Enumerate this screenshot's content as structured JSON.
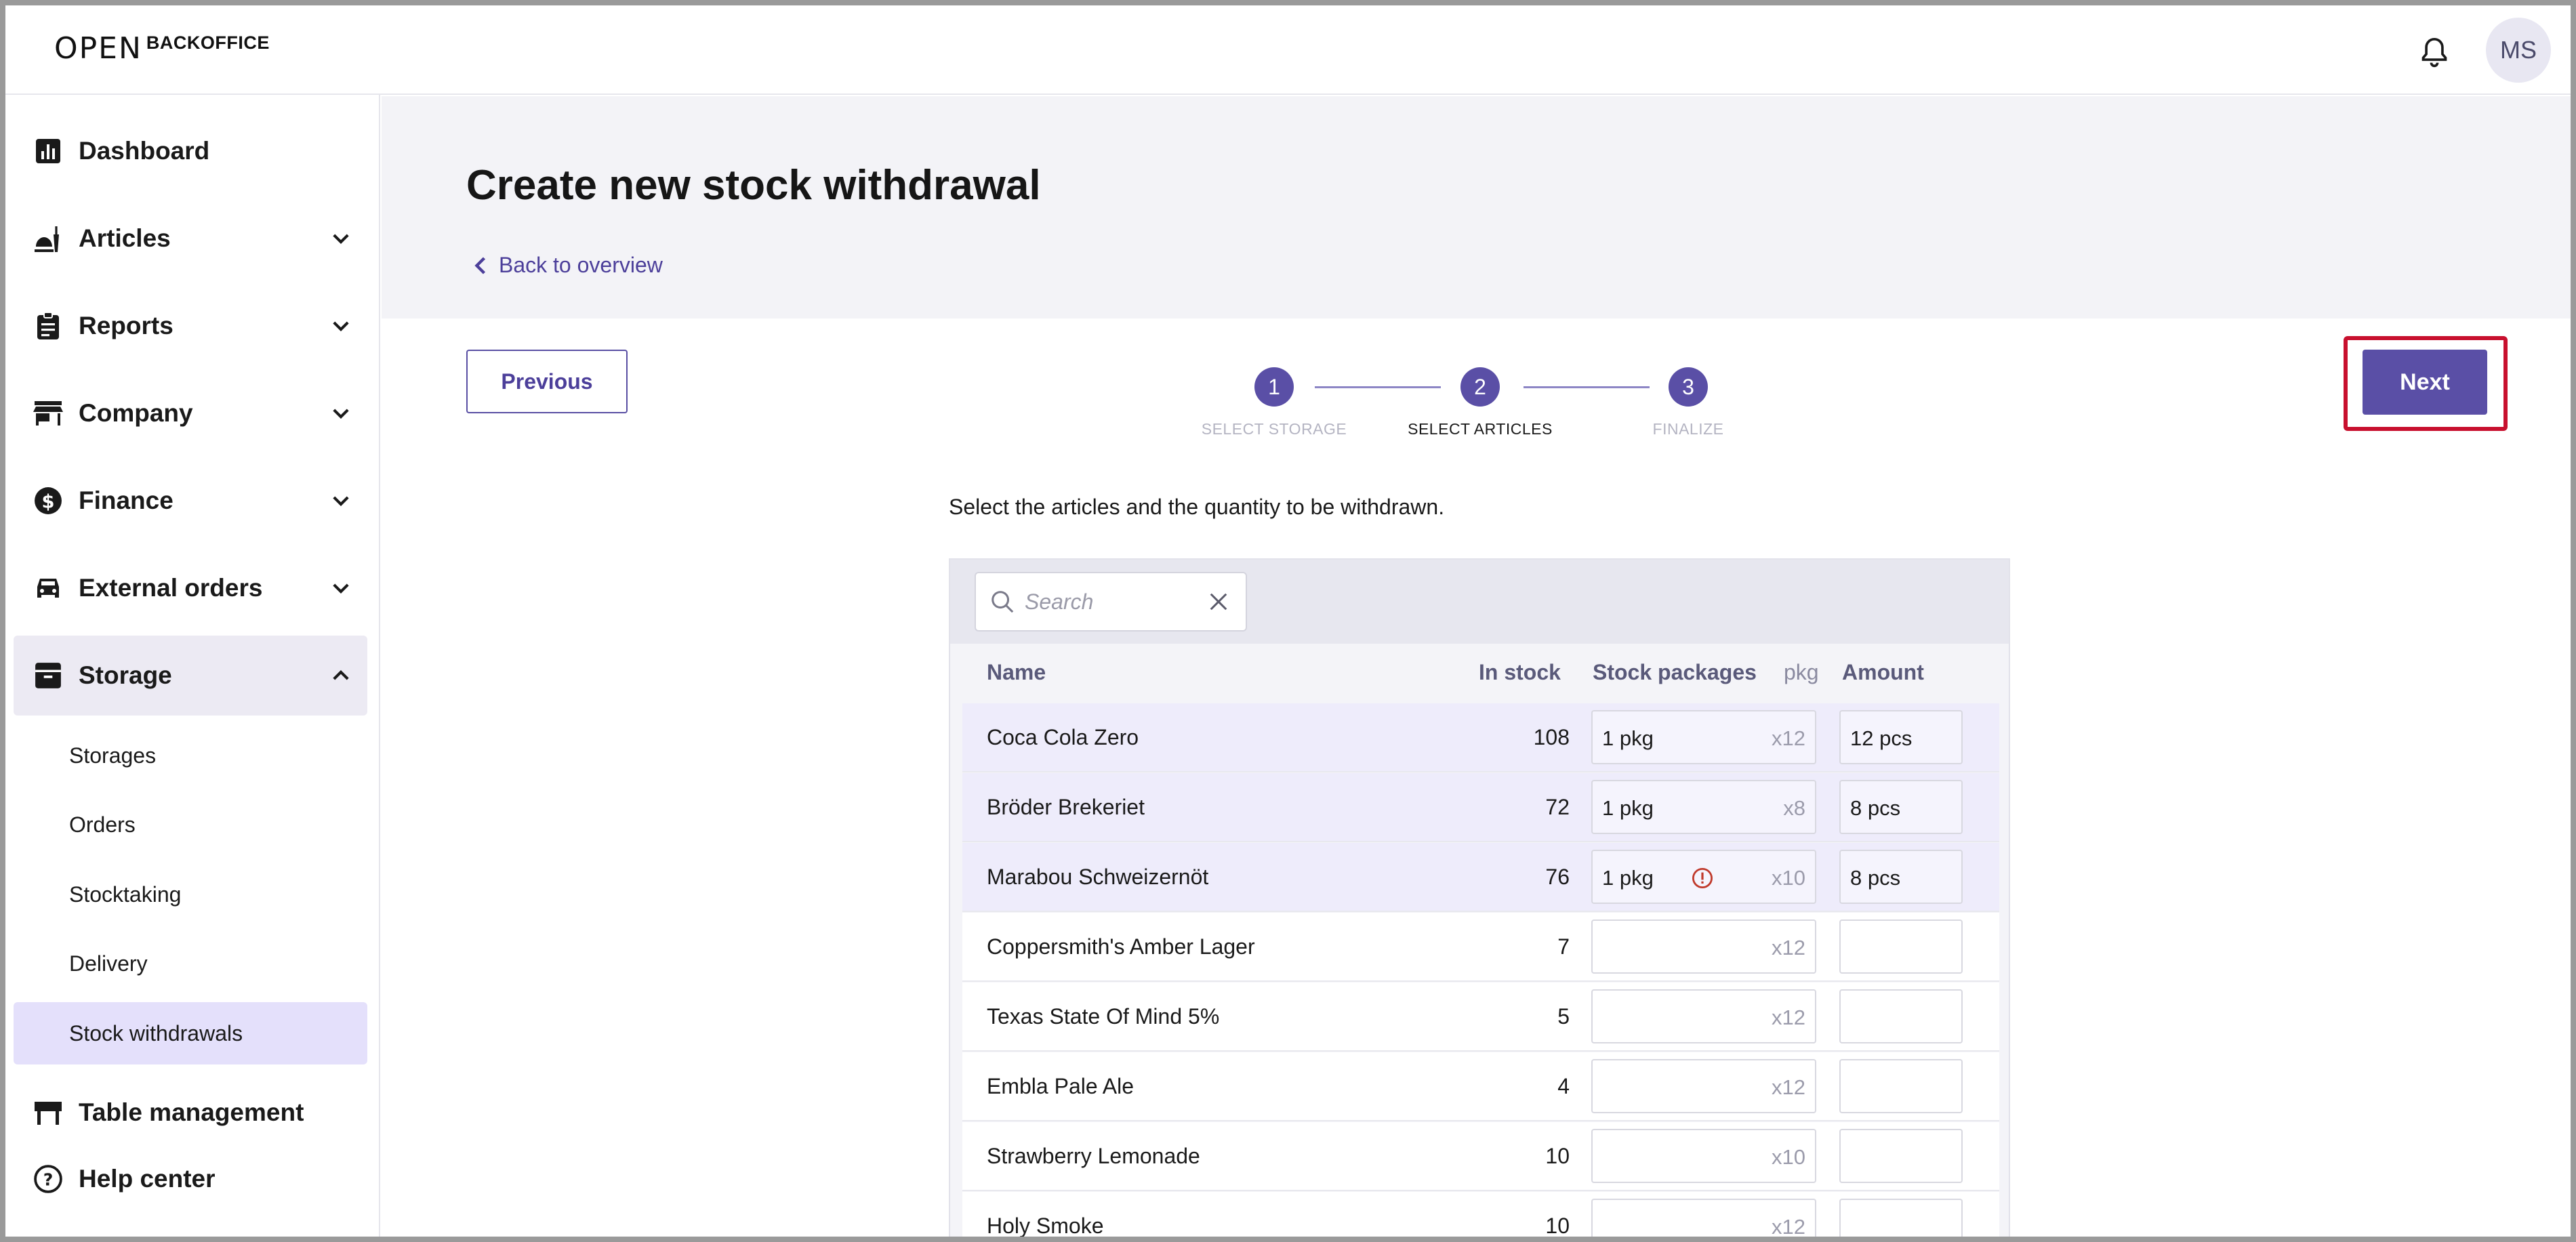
{
  "brand": {
    "logo_main": "OPEN",
    "logo_sub": "BACKOFFICE"
  },
  "user": {
    "initials": "MS"
  },
  "sidebar": {
    "items": [
      {
        "label": "Dashboard",
        "icon": "chart-icon"
      },
      {
        "label": "Articles",
        "icon": "food-icon"
      },
      {
        "label": "Reports",
        "icon": "clipboard-icon"
      },
      {
        "label": "Company",
        "icon": "store-icon"
      },
      {
        "label": "Finance",
        "icon": "dollar-icon"
      },
      {
        "label": "External orders",
        "icon": "car-icon"
      },
      {
        "label": "Storage",
        "icon": "archive-icon"
      },
      {
        "label": "Table management",
        "icon": "table-icon"
      },
      {
        "label": "Help center",
        "icon": "help-icon"
      }
    ],
    "storage_sub": [
      "Storages",
      "Orders",
      "Stocktaking",
      "Delivery",
      "Stock withdrawals"
    ]
  },
  "page": {
    "title": "Create new stock withdrawal",
    "back_label": "Back to overview",
    "previous_label": "Previous",
    "next_label": "Next",
    "instruction": "Select the articles and the quantity to be withdrawn."
  },
  "stepper": [
    {
      "num": "1",
      "label": "SELECT STORAGE"
    },
    {
      "num": "2",
      "label": "SELECT ARTICLES"
    },
    {
      "num": "3",
      "label": "FINALIZE"
    }
  ],
  "table": {
    "search_placeholder": "Search",
    "columns": {
      "name": "Name",
      "in_stock": "In stock",
      "packages": "Stock packages",
      "pkg": "pkg",
      "amount": "Amount"
    },
    "rows": [
      {
        "name": "Coca Cola Zero",
        "stock": "108",
        "pkg": "1 pkg",
        "mult": "x12",
        "amount": "12 pcs",
        "highlight": true,
        "warn": false
      },
      {
        "name": "Bröder Brekeriet",
        "stock": "72",
        "pkg": "1 pkg",
        "mult": "x8",
        "amount": "8 pcs",
        "highlight": true,
        "warn": false
      },
      {
        "name": "Marabou Schweizernöt",
        "stock": "76",
        "pkg": "1 pkg",
        "mult": "x10",
        "amount": "8 pcs",
        "highlight": true,
        "warn": true
      },
      {
        "name": "Coppersmith's Amber Lager",
        "stock": "7",
        "pkg": "",
        "mult": "x12",
        "amount": "",
        "highlight": false,
        "warn": false
      },
      {
        "name": "Texas State Of Mind 5%",
        "stock": "5",
        "pkg": "",
        "mult": "x12",
        "amount": "",
        "highlight": false,
        "warn": false
      },
      {
        "name": "Embla Pale Ale",
        "stock": "4",
        "pkg": "",
        "mult": "x12",
        "amount": "",
        "highlight": false,
        "warn": false
      },
      {
        "name": "Strawberry Lemonade",
        "stock": "10",
        "pkg": "",
        "mult": "x10",
        "amount": "",
        "highlight": false,
        "warn": false
      },
      {
        "name": "Holy Smoke",
        "stock": "10",
        "pkg": "",
        "mult": "x12",
        "amount": "",
        "highlight": false,
        "warn": false
      }
    ]
  },
  "colors": {
    "accent": "#5a4fa6",
    "highlight_row": "#eeecfb",
    "selected_nav": "#e4e0fb",
    "next_outline": "#c8102e",
    "warning": "#c0392b"
  }
}
